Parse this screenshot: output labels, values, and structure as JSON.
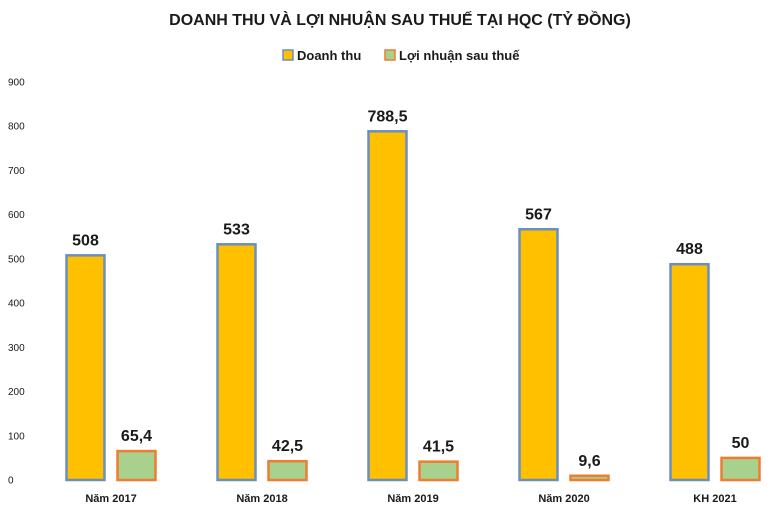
{
  "chart_data": {
    "type": "bar",
    "title": "DOANH THU VÀ LỢI NHUẬN SAU THUẾ TẠI HQC (TỶ ĐỒNG)",
    "categories": [
      "Năm 2017",
      "Năm 2018",
      "Năm 2019",
      "Năm 2020",
      "KH 2021"
    ],
    "series": [
      {
        "name": "Doanh thu",
        "values": [
          508,
          533,
          788.5,
          567,
          488
        ],
        "labels": [
          "508",
          "533",
          "788,5",
          "567",
          "488"
        ],
        "fill": "#FFC000",
        "stroke": "#6A8FBF"
      },
      {
        "name": "Lợi nhuận sau thuế",
        "values": [
          65.4,
          42.5,
          41.5,
          9.6,
          50
        ],
        "labels": [
          "65,4",
          "42,5",
          "41,5",
          "9,6",
          "50"
        ],
        "fill": "#A9D18E",
        "stroke": "#ED7D31"
      }
    ],
    "ylim": [
      0,
      900
    ],
    "yticks": [
      0,
      100,
      200,
      300,
      400,
      500,
      600,
      700,
      800,
      900
    ],
    "grid": false,
    "legend": "top-center"
  }
}
